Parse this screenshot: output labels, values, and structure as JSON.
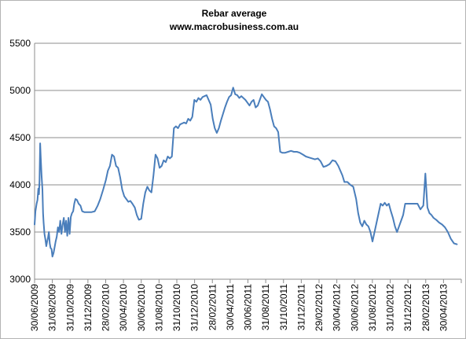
{
  "chart_data": {
    "type": "line",
    "title": "Rebar average",
    "subtitle": "www.macrobusiness.com.au",
    "xlabel": "",
    "ylabel": "",
    "ylim": [
      3000,
      5500
    ],
    "ytick_labels": [
      "3000",
      "3500",
      "4000",
      "4500",
      "5000",
      "5500"
    ],
    "xlim": [
      "2009-06-30",
      "2013-06-30"
    ],
    "xtick_labels": [
      "30/06/2009",
      "31/08/2009",
      "31/10/2009",
      "31/12/2009",
      "28/02/2010",
      "30/04/2010",
      "30/06/2010",
      "31/08/2010",
      "31/10/2010",
      "31/12/2010",
      "28/02/2011",
      "30/04/2011",
      "30/06/2011",
      "31/08/2011",
      "31/10/2011",
      "31/12/2011",
      "29/02/2012",
      "30/04/2012",
      "30/06/2012",
      "31/08/2012",
      "31/10/2012",
      "31/12/2012",
      "28/02/2013",
      "30/04/2013"
    ],
    "grid": true,
    "legend": "none",
    "line_color": "#4a7ebb",
    "series": [
      {
        "values": [
          [
            "2009-06-30",
            3580
          ],
          [
            "2009-07-03",
            3720
          ],
          [
            "2009-07-07",
            3800
          ],
          [
            "2009-07-10",
            3840
          ],
          [
            "2009-07-13",
            3960
          ],
          [
            "2009-07-15",
            3900
          ],
          [
            "2009-07-17",
            4050
          ],
          [
            "2009-07-19",
            4440
          ],
          [
            "2009-07-21",
            4300
          ],
          [
            "2009-07-24",
            4100
          ],
          [
            "2009-07-27",
            3950
          ],
          [
            "2009-07-29",
            3700
          ],
          [
            "2009-07-31",
            3600
          ],
          [
            "2009-08-03",
            3480
          ],
          [
            "2009-08-06",
            3420
          ],
          [
            "2009-08-09",
            3350
          ],
          [
            "2009-08-12",
            3400
          ],
          [
            "2009-08-15",
            3440
          ],
          [
            "2009-08-18",
            3500
          ],
          [
            "2009-08-21",
            3380
          ],
          [
            "2009-08-24",
            3330
          ],
          [
            "2009-08-27",
            3320
          ],
          [
            "2009-08-30",
            3240
          ],
          [
            "2009-09-03",
            3280
          ],
          [
            "2009-09-06",
            3330
          ],
          [
            "2009-09-10",
            3400
          ],
          [
            "2009-09-14",
            3450
          ],
          [
            "2009-09-18",
            3550
          ],
          [
            "2009-09-22",
            3500
          ],
          [
            "2009-09-26",
            3620
          ],
          [
            "2009-09-30",
            3480
          ],
          [
            "2009-10-04",
            3580
          ],
          [
            "2009-10-08",
            3650
          ],
          [
            "2009-10-12",
            3500
          ],
          [
            "2009-10-16",
            3620
          ],
          [
            "2009-10-20",
            3460
          ],
          [
            "2009-10-24",
            3650
          ],
          [
            "2009-10-28",
            3480
          ],
          [
            "2009-11-01",
            3660
          ],
          [
            "2009-11-05",
            3700
          ],
          [
            "2009-11-09",
            3720
          ],
          [
            "2009-11-13",
            3800
          ],
          [
            "2009-11-17",
            3850
          ],
          [
            "2009-11-22",
            3840
          ],
          [
            "2009-11-28",
            3800
          ],
          [
            "2009-12-04",
            3780
          ],
          [
            "2009-12-10",
            3720
          ],
          [
            "2009-12-18",
            3710
          ],
          [
            "2009-12-28",
            3710
          ],
          [
            "2010-01-10",
            3710
          ],
          [
            "2010-01-22",
            3720
          ],
          [
            "2010-02-01",
            3780
          ],
          [
            "2010-02-10",
            3850
          ],
          [
            "2010-02-20",
            3950
          ],
          [
            "2010-03-01",
            4050
          ],
          [
            "2010-03-08",
            4150
          ],
          [
            "2010-03-15",
            4200
          ],
          [
            "2010-03-22",
            4320
          ],
          [
            "2010-03-29",
            4300
          ],
          [
            "2010-04-05",
            4200
          ],
          [
            "2010-04-12",
            4180
          ],
          [
            "2010-04-19",
            4080
          ],
          [
            "2010-04-26",
            3950
          ],
          [
            "2010-05-03",
            3880
          ],
          [
            "2010-05-10",
            3850
          ],
          [
            "2010-05-17",
            3820
          ],
          [
            "2010-05-24",
            3830
          ],
          [
            "2010-05-31",
            3800
          ],
          [
            "2010-06-08",
            3760
          ],
          [
            "2010-06-15",
            3680
          ],
          [
            "2010-06-22",
            3630
          ],
          [
            "2010-06-30",
            3640
          ],
          [
            "2010-07-07",
            3800
          ],
          [
            "2010-07-14",
            3920
          ],
          [
            "2010-07-21",
            3980
          ],
          [
            "2010-07-28",
            3940
          ],
          [
            "2010-08-04",
            3920
          ],
          [
            "2010-08-11",
            4100
          ],
          [
            "2010-08-18",
            4320
          ],
          [
            "2010-08-25",
            4280
          ],
          [
            "2010-09-01",
            4180
          ],
          [
            "2010-09-08",
            4200
          ],
          [
            "2010-09-15",
            4260
          ],
          [
            "2010-09-22",
            4240
          ],
          [
            "2010-09-29",
            4300
          ],
          [
            "2010-10-06",
            4280
          ],
          [
            "2010-10-13",
            4300
          ],
          [
            "2010-10-20",
            4600
          ],
          [
            "2010-10-27",
            4620
          ],
          [
            "2010-11-03",
            4600
          ],
          [
            "2010-11-10",
            4640
          ],
          [
            "2010-11-17",
            4650
          ],
          [
            "2010-11-24",
            4660
          ],
          [
            "2010-12-01",
            4650
          ],
          [
            "2010-12-08",
            4700
          ],
          [
            "2010-12-15",
            4680
          ],
          [
            "2010-12-22",
            4720
          ],
          [
            "2010-12-29",
            4900
          ],
          [
            "2011-01-05",
            4880
          ],
          [
            "2011-01-12",
            4920
          ],
          [
            "2011-01-19",
            4900
          ],
          [
            "2011-01-26",
            4930
          ],
          [
            "2011-02-02",
            4940
          ],
          [
            "2011-02-09",
            4950
          ],
          [
            "2011-02-16",
            4900
          ],
          [
            "2011-02-23",
            4850
          ],
          [
            "2011-03-02",
            4700
          ],
          [
            "2011-03-09",
            4600
          ],
          [
            "2011-03-16",
            4550
          ],
          [
            "2011-03-23",
            4600
          ],
          [
            "2011-03-30",
            4680
          ],
          [
            "2011-04-06",
            4750
          ],
          [
            "2011-04-13",
            4820
          ],
          [
            "2011-04-20",
            4880
          ],
          [
            "2011-04-27",
            4930
          ],
          [
            "2011-05-04",
            4950
          ],
          [
            "2011-05-11",
            5030
          ],
          [
            "2011-05-18",
            4960
          ],
          [
            "2011-05-25",
            4950
          ],
          [
            "2011-06-01",
            4920
          ],
          [
            "2011-06-08",
            4940
          ],
          [
            "2011-06-15",
            4920
          ],
          [
            "2011-06-22",
            4900
          ],
          [
            "2011-06-29",
            4870
          ],
          [
            "2011-07-06",
            4840
          ],
          [
            "2011-07-13",
            4880
          ],
          [
            "2011-07-20",
            4900
          ],
          [
            "2011-07-27",
            4820
          ],
          [
            "2011-08-03",
            4840
          ],
          [
            "2011-08-10",
            4900
          ],
          [
            "2011-08-17",
            4960
          ],
          [
            "2011-08-24",
            4930
          ],
          [
            "2011-08-31",
            4900
          ],
          [
            "2011-09-07",
            4880
          ],
          [
            "2011-09-14",
            4800
          ],
          [
            "2011-09-21",
            4700
          ],
          [
            "2011-09-28",
            4620
          ],
          [
            "2011-10-05",
            4600
          ],
          [
            "2011-10-12",
            4560
          ],
          [
            "2011-10-19",
            4350
          ],
          [
            "2011-10-26",
            4340
          ],
          [
            "2011-11-05",
            4340
          ],
          [
            "2011-11-15",
            4350
          ],
          [
            "2011-11-25",
            4360
          ],
          [
            "2011-12-05",
            4350
          ],
          [
            "2011-12-15",
            4350
          ],
          [
            "2011-12-25",
            4340
          ],
          [
            "2012-01-05",
            4320
          ],
          [
            "2012-01-15",
            4300
          ],
          [
            "2012-01-25",
            4290
          ],
          [
            "2012-02-05",
            4280
          ],
          [
            "2012-02-15",
            4270
          ],
          [
            "2012-02-25",
            4280
          ],
          [
            "2012-03-05",
            4250
          ],
          [
            "2012-03-15",
            4190
          ],
          [
            "2012-03-25",
            4200
          ],
          [
            "2012-04-05",
            4220
          ],
          [
            "2012-04-15",
            4260
          ],
          [
            "2012-04-25",
            4250
          ],
          [
            "2012-05-05",
            4200
          ],
          [
            "2012-05-12",
            4150
          ],
          [
            "2012-05-19",
            4100
          ],
          [
            "2012-05-26",
            4030
          ],
          [
            "2012-06-05",
            4030
          ],
          [
            "2012-06-15",
            4000
          ],
          [
            "2012-06-25",
            3980
          ],
          [
            "2012-07-05",
            3850
          ],
          [
            "2012-07-12",
            3700
          ],
          [
            "2012-07-19",
            3600
          ],
          [
            "2012-07-26",
            3560
          ],
          [
            "2012-08-02",
            3620
          ],
          [
            "2012-08-09",
            3580
          ],
          [
            "2012-08-16",
            3560
          ],
          [
            "2012-08-23",
            3500
          ],
          [
            "2012-08-30",
            3400
          ],
          [
            "2012-09-06",
            3500
          ],
          [
            "2012-09-13",
            3600
          ],
          [
            "2012-09-20",
            3700
          ],
          [
            "2012-09-27",
            3800
          ],
          [
            "2012-10-04",
            3780
          ],
          [
            "2012-10-11",
            3810
          ],
          [
            "2012-10-18",
            3780
          ],
          [
            "2012-10-25",
            3800
          ],
          [
            "2012-11-01",
            3720
          ],
          [
            "2012-11-08",
            3650
          ],
          [
            "2012-11-15",
            3560
          ],
          [
            "2012-11-22",
            3500
          ],
          [
            "2012-11-29",
            3560
          ],
          [
            "2012-12-06",
            3620
          ],
          [
            "2012-12-13",
            3680
          ],
          [
            "2012-12-20",
            3800
          ],
          [
            "2013-01-10",
            3800
          ],
          [
            "2013-01-31",
            3800
          ],
          [
            "2013-02-10",
            3740
          ],
          [
            "2013-02-20",
            3780
          ],
          [
            "2013-02-27",
            4120
          ],
          [
            "2013-03-06",
            3760
          ],
          [
            "2013-03-13",
            3700
          ],
          [
            "2013-03-20",
            3680
          ],
          [
            "2013-03-27",
            3650
          ],
          [
            "2013-04-05",
            3630
          ],
          [
            "2013-04-15",
            3600
          ],
          [
            "2013-04-25",
            3580
          ],
          [
            "2013-05-05",
            3550
          ],
          [
            "2013-05-15",
            3500
          ],
          [
            "2013-05-25",
            3430
          ],
          [
            "2013-06-05",
            3380
          ],
          [
            "2013-06-15",
            3370
          ]
        ]
      }
    ]
  }
}
